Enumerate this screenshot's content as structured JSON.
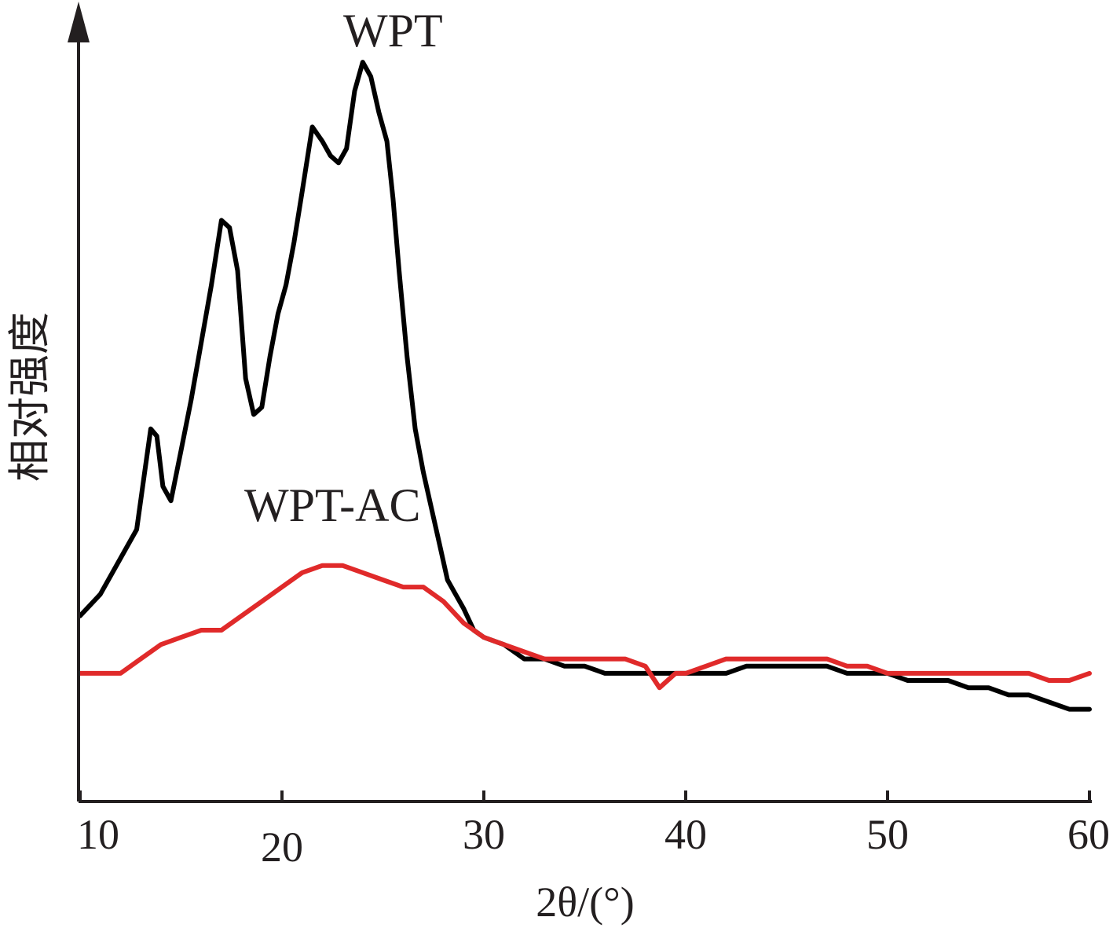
{
  "chart_data": {
    "type": "line",
    "title": "",
    "xlabel": "2θ/(°)",
    "ylabel": "相对强度",
    "xlim": [
      10,
      60
    ],
    "ylim": [
      0,
      100
    ],
    "xticks": [
      10,
      20,
      30,
      40,
      50,
      60
    ],
    "grid": false,
    "legend": "none (series labelled directly on plot)",
    "colors": {
      "axis": "#231f20",
      "WPT": "#000000",
      "WPT-AC": "#e02a2a"
    },
    "series": [
      {
        "name": "WPT",
        "color": "#000000",
        "x": [
          10,
          11,
          12,
          12.8,
          13.2,
          13.5,
          13.8,
          14.1,
          14.5,
          15,
          15.5,
          16,
          16.5,
          17,
          17.4,
          17.8,
          18.2,
          18.6,
          19,
          19.4,
          19.8,
          20.2,
          20.6,
          21,
          21.5,
          22,
          22.4,
          22.8,
          23.2,
          23.6,
          24,
          24.4,
          24.8,
          25.2,
          25.5,
          25.8,
          26.2,
          26.6,
          27,
          27.4,
          27.8,
          28.2,
          28.6,
          29,
          29.5,
          30,
          31,
          32,
          33,
          34,
          35,
          36,
          37,
          38,
          39,
          40,
          41,
          42,
          43,
          44,
          45,
          46,
          47,
          48,
          49,
          50,
          51,
          52,
          53,
          54,
          55,
          56,
          57,
          58,
          59,
          60
        ],
        "y": [
          22,
          25,
          30,
          34,
          42,
          48,
          47,
          40,
          38,
          45,
          52,
          60,
          68,
          77,
          76,
          70,
          55,
          50,
          51,
          58,
          64,
          68,
          74,
          81,
          90,
          88,
          86,
          85,
          87,
          95,
          99,
          97,
          92,
          88,
          80,
          70,
          58,
          48,
          42,
          37,
          32,
          27,
          25,
          23,
          20,
          19,
          18,
          16,
          16,
          15,
          15,
          14,
          14,
          14,
          14,
          14,
          14,
          14,
          15,
          15,
          15,
          15,
          15,
          14,
          14,
          14,
          13,
          13,
          13,
          12,
          12,
          11,
          11,
          10,
          9,
          9
        ]
      },
      {
        "name": "WPT-AC",
        "color": "#e02a2a",
        "x": [
          10,
          11,
          12,
          13,
          14,
          15,
          16,
          17,
          18,
          19,
          20,
          21,
          22,
          23,
          24,
          25,
          26,
          27,
          28,
          29,
          30,
          31,
          32,
          33,
          34,
          35,
          36,
          37,
          38,
          38.7,
          39.5,
          40,
          41,
          42,
          43,
          44,
          45,
          46,
          47,
          48,
          49,
          50,
          51,
          52,
          53,
          54,
          55,
          56,
          57,
          58,
          59,
          60
        ],
        "y": [
          14,
          14,
          14,
          16,
          18,
          19,
          20,
          20,
          22,
          24,
          26,
          28,
          29,
          29,
          28,
          27,
          26,
          26,
          24,
          21,
          19,
          18,
          17,
          16,
          16,
          16,
          16,
          16,
          15,
          12,
          14,
          14,
          15,
          16,
          16,
          16,
          16,
          16,
          16,
          15,
          15,
          14,
          14,
          14,
          14,
          14,
          14,
          14,
          14,
          13,
          13,
          14
        ]
      }
    ],
    "annotations": [
      {
        "text": "WPT",
        "series": "WPT",
        "x": 25.5,
        "y": 99
      },
      {
        "text": "WPT-AC",
        "series": "WPT-AC",
        "x": 22.5,
        "y": 33
      }
    ]
  }
}
